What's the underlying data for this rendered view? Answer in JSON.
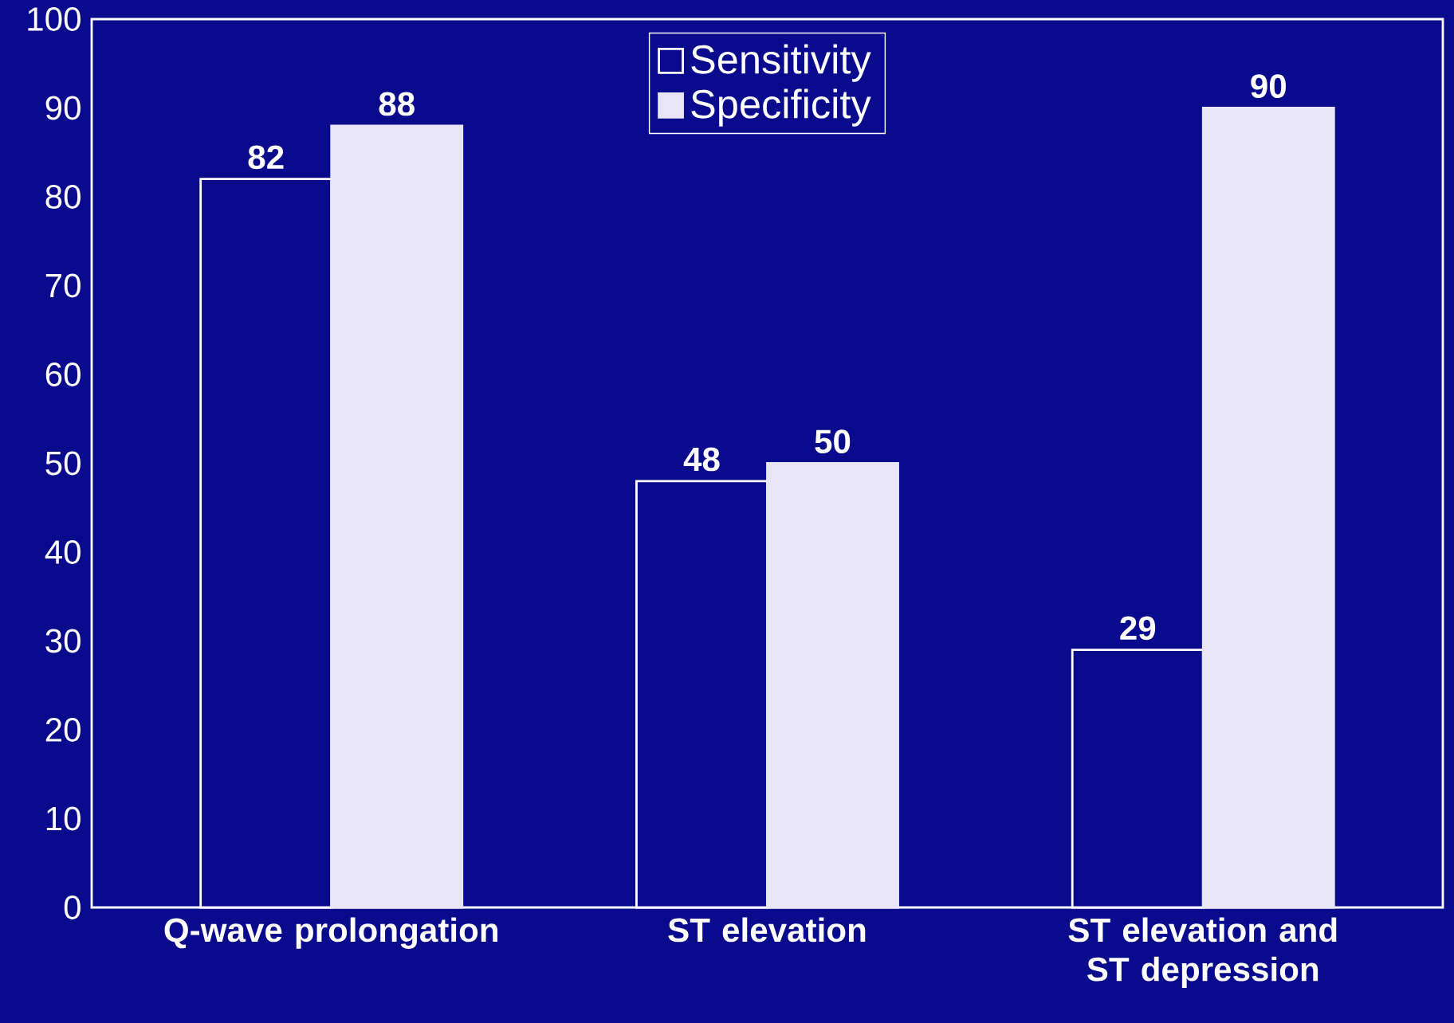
{
  "chart_data": {
    "type": "bar",
    "categories": [
      "Q-wave prolongation",
      "ST elevation",
      "ST elevation and ST depression"
    ],
    "series": [
      {
        "name": "Sensitivity",
        "color": "#ffffff",
        "values": [
          82,
          48,
          29
        ]
      },
      {
        "name": "Specificity",
        "color": "#e8e6f6",
        "values": [
          88,
          50,
          90
        ]
      }
    ],
    "ylim": [
      0,
      100
    ],
    "yticks": [
      0,
      10,
      20,
      30,
      40,
      50,
      60,
      70,
      80,
      90,
      100
    ],
    "data_labels": true,
    "grid": false,
    "legend": "top"
  }
}
